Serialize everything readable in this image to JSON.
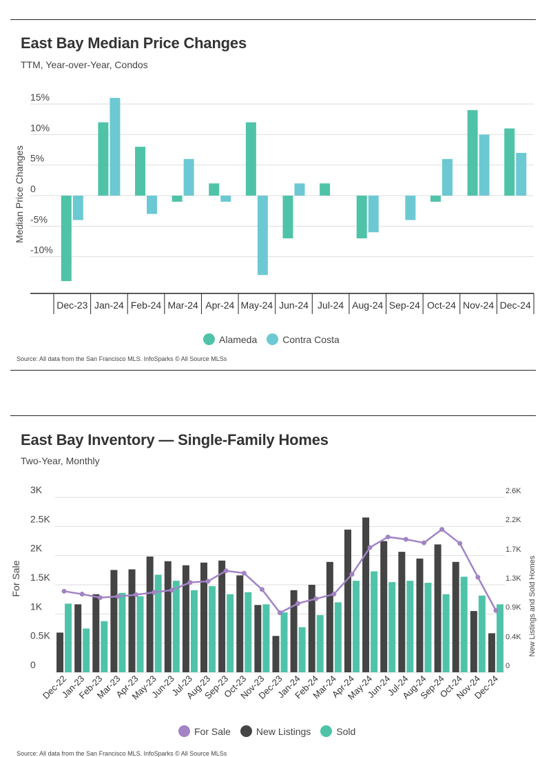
{
  "colors": {
    "alameda": "#4fc3a8",
    "contra_costa": "#6cc9d3",
    "for_sale": "#a283c4",
    "new_listings": "#444444",
    "sold": "#4fc3a8",
    "grid": "#dddddd",
    "axis": "#222222"
  },
  "chart_data": [
    {
      "type": "bar",
      "title": "East Bay Median Price Changes",
      "subtitle": "TTM, Year-over-Year, Condos",
      "ylabel": "Median Price Changes",
      "xlabel": "",
      "categories": [
        "Dec-23",
        "Jan-24",
        "Feb-24",
        "Mar-24",
        "Apr-24",
        "May-24",
        "Jun-24",
        "Jul-24",
        "Aug-24",
        "Sep-24",
        "Oct-24",
        "Nov-24",
        "Dec-24"
      ],
      "series": [
        {
          "name": "Alameda",
          "values": [
            -14,
            12,
            8,
            -1,
            2,
            12,
            -7,
            2,
            -7,
            0,
            -1,
            14,
            11
          ]
        },
        {
          "name": "Contra Costa",
          "values": [
            -4,
            16,
            -3,
            6,
            -1,
            -13,
            2,
            0,
            -6,
            -4,
            6,
            10,
            7
          ]
        }
      ],
      "ylim": [
        -15,
        15
      ],
      "yticks": [
        -10,
        -5,
        0,
        5,
        10,
        15
      ],
      "ytick_labels": [
        "-10%",
        "-5%",
        "0",
        "5%",
        "10%",
        "15%"
      ],
      "grid": true,
      "legend": "bottom-center",
      "source": "Source:  All data from the San Francisco MLS. InfoSparks © All Source MLSs"
    },
    {
      "type": "bar",
      "title": "East Bay Inventory — Single-Family Homes",
      "subtitle": "Two-Year, Monthly",
      "ylabel": "For Sale",
      "y2label": "New Listings and Sold Homes",
      "categories": [
        "Dec-22",
        "Jan-23",
        "Feb-23",
        "Mar-23",
        "Apr-23",
        "May-23",
        "Jun-23",
        "Jul-23",
        "Aug-23",
        "Sep-23",
        "Oct-23",
        "Nov-23",
        "Dec-23",
        "Jan-24",
        "Feb-24",
        "Mar-24",
        "Apr-24",
        "May-24",
        "Jun-24",
        "Jul-24",
        "Aug-24",
        "Sep-24",
        "Oct-24",
        "Nov-24",
        "Dec-24"
      ],
      "series": [
        {
          "name": "For Sale",
          "kind": "line",
          "axis": "left",
          "values": [
            1390,
            1340,
            1280,
            1300,
            1330,
            1370,
            1410,
            1540,
            1560,
            1740,
            1700,
            1420,
            1020,
            1180,
            1260,
            1340,
            1680,
            2140,
            2320,
            2280,
            2220,
            2450,
            2210,
            1630,
            1060
          ]
        },
        {
          "name": "New Listings",
          "kind": "bar",
          "axis": "right",
          "values": [
            590,
            1010,
            1160,
            1520,
            1530,
            1720,
            1650,
            1590,
            1630,
            1660,
            1440,
            1000,
            540,
            1220,
            1300,
            1640,
            2120,
            2300,
            1950,
            1790,
            1690,
            1900,
            1640,
            910,
            580
          ]
        },
        {
          "name": "Sold",
          "kind": "bar",
          "axis": "right",
          "values": [
            1020,
            650,
            760,
            1180,
            1130,
            1450,
            1360,
            1220,
            1280,
            1160,
            1190,
            1010,
            890,
            670,
            850,
            1040,
            1360,
            1500,
            1340,
            1360,
            1330,
            1160,
            1420,
            1140,
            1010
          ]
        }
      ],
      "ylim": [
        0,
        3000
      ],
      "yticks": [
        0,
        500,
        1000,
        1500,
        2000,
        2500,
        3000
      ],
      "ytick_labels": [
        "0",
        "0.5K",
        "1K",
        "1.5K",
        "2K",
        "2.5K",
        "3K"
      ],
      "y2lim": [
        0,
        2600
      ],
      "y2ticks": [
        0,
        430,
        870,
        1300,
        1730,
        2170,
        2600
      ],
      "y2tick_labels": [
        "0",
        "0.4K",
        "0.9K",
        "1.3K",
        "1.7K",
        "2.2K",
        "2.6K"
      ],
      "grid": true,
      "legend": "bottom-center",
      "source": "Source:  All data from the San Francisco MLS. InfoSparks © All Source MLSs"
    }
  ]
}
